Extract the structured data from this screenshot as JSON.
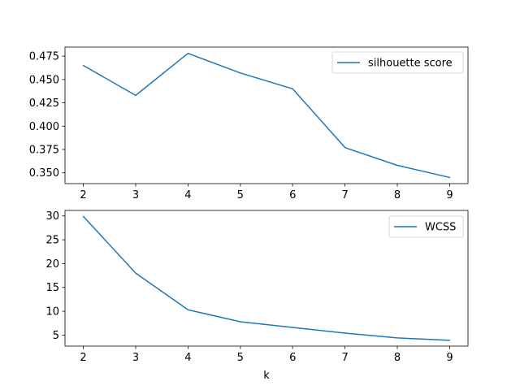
{
  "chart_data": [
    {
      "type": "line",
      "x": [
        2,
        3,
        4,
        5,
        6,
        7,
        8,
        9
      ],
      "xticks": [
        "2",
        "3",
        "4",
        "5",
        "6",
        "7",
        "8",
        "9"
      ],
      "xlim": [
        1.65,
        9.35
      ],
      "ylim": [
        0.3384,
        0.4847
      ],
      "yticks": [
        0.35,
        0.375,
        0.4,
        0.425,
        0.45,
        0.475
      ],
      "ytick_labels": [
        "0.350",
        "0.375",
        "0.400",
        "0.425",
        "0.450",
        "0.475"
      ],
      "xlabel": "",
      "ylabel": "",
      "grid": false,
      "legend_position": "top-right",
      "series": [
        {
          "name": "silhouette score",
          "color": "#1f77b4",
          "values": [
            0.465,
            0.433,
            0.478,
            0.457,
            0.44,
            0.377,
            0.358,
            0.345
          ]
        }
      ]
    },
    {
      "type": "line",
      "x": [
        2,
        3,
        4,
        5,
        6,
        7,
        8,
        9
      ],
      "xticks": [
        "2",
        "3",
        "4",
        "5",
        "6",
        "7",
        "8",
        "9"
      ],
      "xlim": [
        1.65,
        9.35
      ],
      "ylim": [
        2.68,
        31.15
      ],
      "yticks": [
        5,
        10,
        15,
        20,
        25,
        30
      ],
      "ytick_labels": [
        "5",
        "10",
        "15",
        "20",
        "25",
        "30"
      ],
      "xlabel": "k",
      "ylabel": "",
      "grid": false,
      "legend_position": "top-right",
      "series": [
        {
          "name": "WCSS",
          "color": "#1f77b4",
          "values": [
            29.9,
            18.0,
            10.3,
            7.8,
            6.6,
            5.4,
            4.4,
            3.9
          ]
        }
      ]
    }
  ]
}
